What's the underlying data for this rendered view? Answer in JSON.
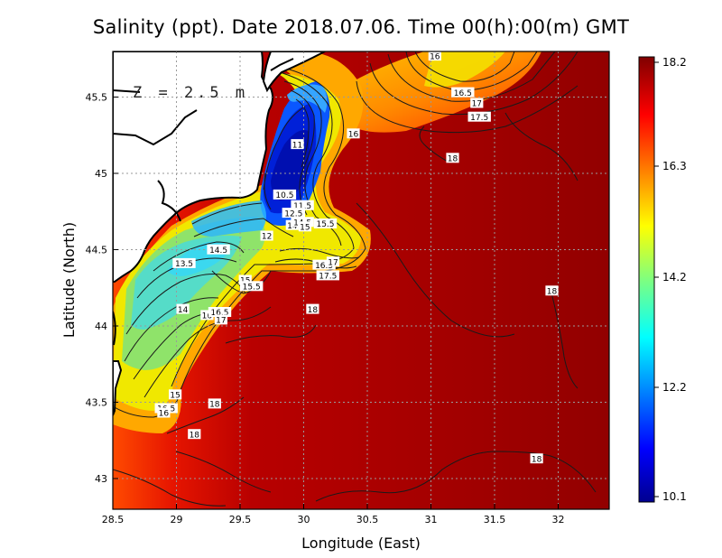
{
  "title": "Salinity (ppt). Date 2018.07.06. Time 00(h):00(m) GMT",
  "depth_label": "Z = 2.5 m",
  "x_axis": {
    "label": "Longitude (East)",
    "range": [
      28.5,
      32.4
    ],
    "ticks": [
      {
        "value": 28.5,
        "label": "28.5"
      },
      {
        "value": 29,
        "label": "29"
      },
      {
        "value": 29.5,
        "label": "29.5"
      },
      {
        "value": 30,
        "label": "30"
      },
      {
        "value": 30.5,
        "label": "30.5"
      },
      {
        "value": 31,
        "label": "31"
      },
      {
        "value": 31.5,
        "label": "31.5"
      },
      {
        "value": 32,
        "label": "32"
      }
    ]
  },
  "y_axis": {
    "label": "Latitude (North)",
    "range": [
      42.8,
      45.8
    ],
    "ticks": [
      {
        "value": 43,
        "label": "43"
      },
      {
        "value": 43.5,
        "label": "43.5"
      },
      {
        "value": 44,
        "label": "44"
      },
      {
        "value": 44.5,
        "label": "44.5"
      },
      {
        "value": 45,
        "label": "45"
      },
      {
        "value": 45.5,
        "label": "45.5"
      }
    ]
  },
  "colorbar": {
    "min": 10.1,
    "max": 18.2,
    "ticks": [
      {
        "value": 18.2,
        "label": "18.2"
      },
      {
        "value": 16.3,
        "label": "16.3"
      },
      {
        "value": 14.2,
        "label": "14.2"
      },
      {
        "value": 12.2,
        "label": "12.2"
      },
      {
        "value": 10.1,
        "label": "10.1"
      }
    ],
    "colors": [
      "#00008f",
      "#0000ff",
      "#00ffff",
      "#ffff00",
      "#ff0000",
      "#800000"
    ]
  },
  "colors": {
    "land": "#ffffff",
    "coastline": "#000000",
    "contour": "#1a1a1a",
    "grid": "#9a9a9a"
  },
  "contour_labels": [
    {
      "text": "16",
      "lon": 31.03,
      "lat": 45.77
    },
    {
      "text": "16.5",
      "lon": 31.25,
      "lat": 45.53
    },
    {
      "text": "17",
      "lon": 31.36,
      "lat": 45.46
    },
    {
      "text": "17.5",
      "lon": 31.38,
      "lat": 45.37
    },
    {
      "text": "16",
      "lon": 30.39,
      "lat": 45.26
    },
    {
      "text": "18",
      "lon": 31.17,
      "lat": 45.1
    },
    {
      "text": "11",
      "lon": 29.95,
      "lat": 45.19
    },
    {
      "text": "10.5",
      "lon": 29.85,
      "lat": 44.86
    },
    {
      "text": "11.5",
      "lon": 29.99,
      "lat": 44.79
    },
    {
      "text": "12.5",
      "lon": 29.92,
      "lat": 44.74
    },
    {
      "text": "14",
      "lon": 29.91,
      "lat": 44.66
    },
    {
      "text": "14.5",
      "lon": 29.99,
      "lat": 44.68
    },
    {
      "text": "15",
      "lon": 30.01,
      "lat": 44.65
    },
    {
      "text": "15.5",
      "lon": 30.17,
      "lat": 44.67
    },
    {
      "text": "12",
      "lon": 29.71,
      "lat": 44.59
    },
    {
      "text": "14.5",
      "lon": 29.33,
      "lat": 44.5
    },
    {
      "text": "13.5",
      "lon": 29.06,
      "lat": 44.41
    },
    {
      "text": "15",
      "lon": 29.54,
      "lat": 44.3
    },
    {
      "text": "15.5",
      "lon": 29.59,
      "lat": 44.26
    },
    {
      "text": "16.5",
      "lon": 30.16,
      "lat": 44.4
    },
    {
      "text": "17",
      "lon": 30.23,
      "lat": 44.42
    },
    {
      "text": "17.5",
      "lon": 30.19,
      "lat": 44.33
    },
    {
      "text": "18",
      "lon": 31.95,
      "lat": 44.23
    },
    {
      "text": "18",
      "lon": 30.07,
      "lat": 44.11
    },
    {
      "text": "14",
      "lon": 29.05,
      "lat": 44.11
    },
    {
      "text": "16",
      "lon": 29.24,
      "lat": 44.07
    },
    {
      "text": "16.5",
      "lon": 29.34,
      "lat": 44.09
    },
    {
      "text": "17",
      "lon": 29.35,
      "lat": 44.04
    },
    {
      "text": "15",
      "lon": 28.99,
      "lat": 43.55
    },
    {
      "text": "16.5",
      "lon": 28.92,
      "lat": 43.46
    },
    {
      "text": "16",
      "lon": 28.9,
      "lat": 43.43
    },
    {
      "text": "18",
      "lon": 29.3,
      "lat": 43.49
    },
    {
      "text": "18",
      "lon": 29.14,
      "lat": 43.29
    },
    {
      "text": "18",
      "lon": 31.83,
      "lat": 43.13
    }
  ]
}
